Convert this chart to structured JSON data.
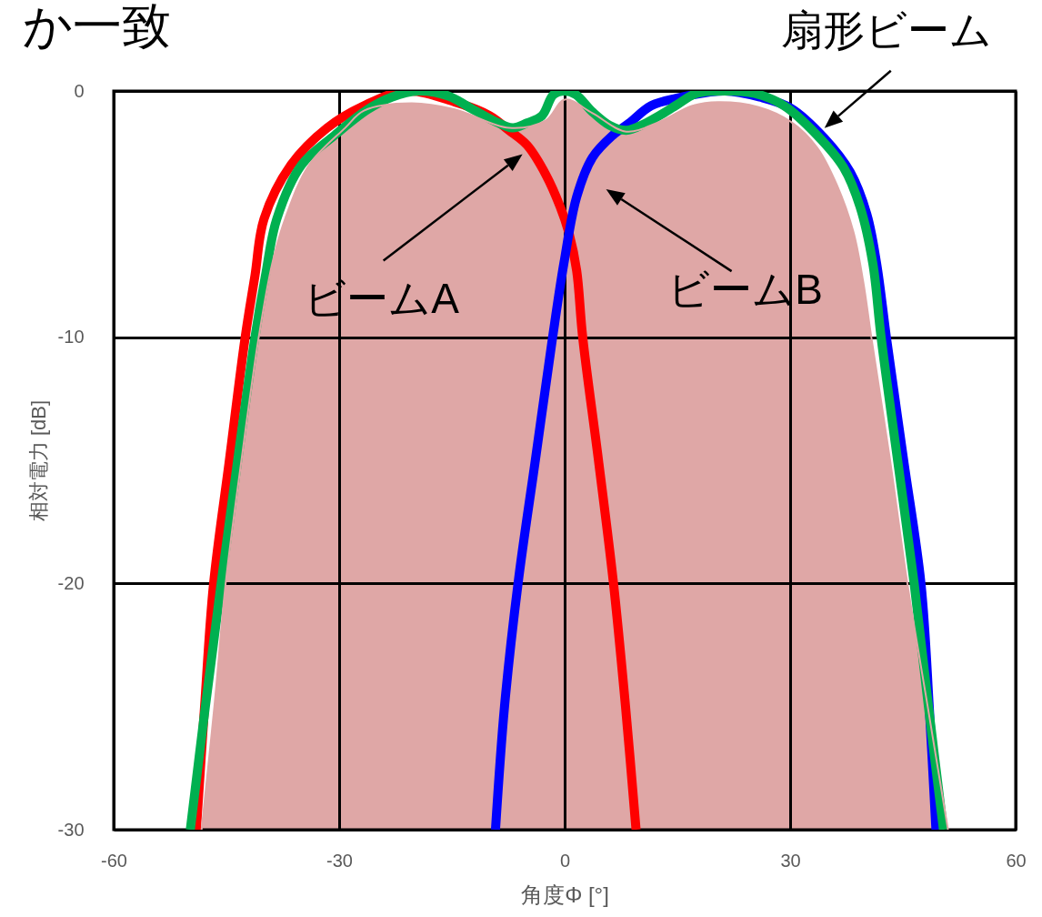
{
  "chart_data": {
    "type": "line",
    "title": "か一致",
    "xlabel": "角度Φ [°]",
    "ylabel": "相対電力 [dB]",
    "xlim": [
      -60,
      60
    ],
    "xticks": [
      -60,
      -30,
      0,
      30,
      60
    ],
    "ylim": [
      -30,
      0
    ],
    "yticks": [
      -30,
      -20,
      -10,
      0
    ],
    "grid": true,
    "series": [
      {
        "name": "ビームA",
        "color": "#ff0000",
        "x": [
          -49,
          -47.9,
          -46.7,
          -44.6,
          -42.5,
          -41.2,
          -40,
          -36.4,
          -31.6,
          -26.7,
          -21,
          -14.6,
          -10,
          -7.4,
          -5,
          -2.5,
          -0.6,
          0.6,
          1.6,
          2.4,
          4.5,
          6.5,
          8.1,
          9.5
        ],
        "values": [
          -30,
          -25,
          -20,
          -15,
          -10,
          -7.5,
          -5.2,
          -3,
          -1.5,
          -0.6,
          0,
          -0.45,
          -1,
          -1.6,
          -2.2,
          -3.4,
          -4.7,
          -5.8,
          -7.3,
          -10,
          -15,
          -20,
          -25,
          -30
        ]
      },
      {
        "name": "ビームB",
        "color": "#0000ff",
        "x": [
          -9.2,
          -8,
          -6.2,
          -3.9,
          -1.6,
          -0.1,
          1.6,
          3.7,
          6.4,
          8.6,
          11.5,
          14.8,
          21.3,
          26,
          30.1,
          34.5,
          38,
          40.2,
          41.5,
          42.8,
          45.1,
          47.4,
          48.5,
          49.4
        ],
        "values": [
          -30,
          -25,
          -20,
          -15,
          -10,
          -7,
          -4.3,
          -2.7,
          -1.8,
          -1.3,
          -0.6,
          -0.3,
          0,
          -0.25,
          -0.7,
          -1.9,
          -3.3,
          -5,
          -7,
          -10,
          -15,
          -20,
          -25,
          -30
        ]
      },
      {
        "name": "扇形ビーム",
        "color": "#00b050",
        "x": [
          -49.8,
          -47.8,
          -45.7,
          -43.5,
          -41.2,
          -39.8,
          -38.3,
          -35,
          -30.6,
          -26.2,
          -23,
          -19.5,
          -15.5,
          -12.2,
          -9.5,
          -6.9,
          -5,
          -3,
          -1.5,
          0,
          1.5,
          3.7,
          6,
          8.2,
          10.5,
          12.6,
          15,
          17.5,
          21.5,
          25.3,
          29.2,
          33.6,
          37.1,
          39.3,
          41,
          42.1,
          44.3,
          46.5,
          48.4,
          50.4
        ],
        "values": [
          -30,
          -25,
          -20,
          -15,
          -10,
          -7.5,
          -5.2,
          -3,
          -1.8,
          -0.75,
          -0.25,
          0,
          -0.2,
          -0.75,
          -1.2,
          -1.5,
          -1.3,
          -1,
          -0.15,
          0,
          -0.15,
          -0.85,
          -1.4,
          -1.6,
          -1.35,
          -1,
          -0.55,
          -0.1,
          0,
          -0.1,
          -0.6,
          -1.8,
          -3.1,
          -4.7,
          -7,
          -10,
          -15,
          -20,
          -25,
          -30
        ]
      },
      {
        "color": "#dfa7a6",
        "x": [
          -48.3,
          -46.6,
          -45.1,
          -43,
          -40.7,
          -38.9,
          -37.2,
          -34,
          -29.2,
          -26.7,
          -20.4,
          -14.6,
          -7.4,
          -2.5,
          0,
          3.7,
          8.2,
          12.6,
          17,
          20.4,
          25.8,
          30.1,
          33.6,
          36.2,
          38.4,
          39.7,
          40.8,
          43.3,
          45.6,
          48.3,
          51
        ],
        "values": [
          -30,
          -25,
          -20,
          -15,
          -10,
          -7,
          -5.2,
          -3,
          -1.5,
          -0.8,
          -0.5,
          -0.75,
          -1.5,
          -1.2,
          -0.35,
          -0.9,
          -1.65,
          -1.25,
          -0.6,
          -0.45,
          -0.65,
          -1.25,
          -2.3,
          -3.8,
          -5.7,
          -7.7,
          -10,
          -15,
          -20,
          -25,
          -30
        ],
        "lower": [
          -30,
          -30,
          -30,
          -30,
          -30,
          -30,
          -30,
          -30,
          -30,
          -30,
          -30,
          -30,
          -30,
          -30,
          -30,
          -30,
          -30,
          -30,
          -30,
          -30,
          -30,
          -30,
          -30,
          -30,
          -30,
          -30,
          -30,
          -30,
          -30,
          -30,
          -30
        ],
        "upper": [
          -30,
          -25,
          -20,
          -15,
          -10,
          -7,
          -5.2,
          -3,
          -1.5,
          -0.8,
          -0.5,
          -0.75,
          -1.5,
          -1.2,
          -0.35,
          -0.9,
          -1.65,
          -1.25,
          -0.6,
          -0.45,
          -0.65,
          -1.25,
          -2.3,
          -3.8,
          -5.7,
          -7.7,
          -10,
          -15,
          -20,
          -25,
          -30
        ]
      }
    ]
  }
}
